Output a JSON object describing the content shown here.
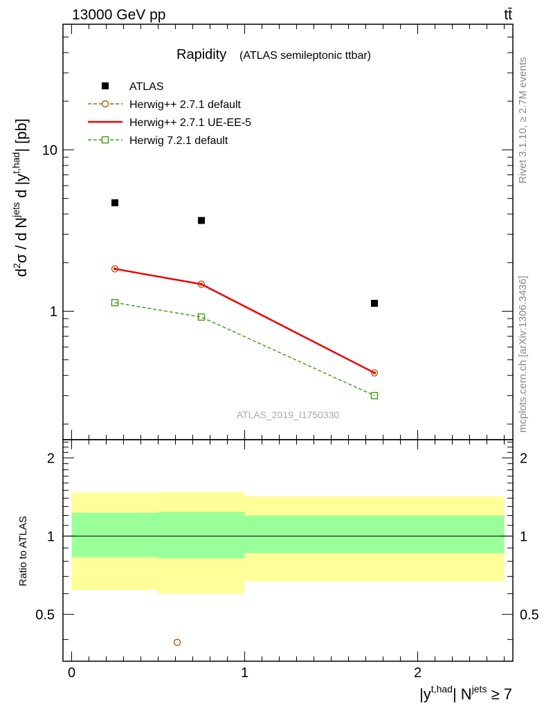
{
  "header": {
    "energy": "13000 GeV pp",
    "process": "tt̄"
  },
  "side_labels": {
    "rivet": "Rivet 3.1.10, ≥ 2.7M events",
    "mcplots": "mcplots.cern.ch [arXiv:1306.3436]"
  },
  "chart_data": [
    {
      "type": "scatter",
      "title": "Rapidity",
      "subtitle": "(ATLAS semileptonic ttbar)",
      "ylabel": "d²σ / d N^jets d |y^t,had| [pb]",
      "yscale": "log",
      "ylim": [
        0.16,
        60
      ],
      "xlim": [
        -0.05,
        2.55
      ],
      "grid": false,
      "legend_position": "top-left",
      "watermark": "ATLAS_2019_I1750330",
      "ytick_labels": [
        "1",
        "10"
      ],
      "series": [
        {
          "name": "ATLAS",
          "marker": "filled-square",
          "color": "#000000",
          "x": [
            0.25,
            0.75,
            1.75
          ],
          "y": [
            4.7,
            3.65,
            1.12
          ]
        },
        {
          "name": "Herwig++ 2.7.1 default",
          "marker": "open-circle",
          "line": "dashed",
          "color": "#b05a00",
          "x": [
            0.25,
            0.75,
            1.75
          ],
          "y": [
            1.83,
            1.47,
            0.415
          ]
        },
        {
          "name": "Herwig++ 2.7.1 UE-EE-5",
          "marker": "none",
          "line": "solid",
          "color": "#ee0000",
          "x": [
            0.25,
            0.75,
            1.75
          ],
          "y": [
            1.83,
            1.47,
            0.415
          ]
        },
        {
          "name": "Herwig 7.2.1 default",
          "marker": "open-square",
          "line": "dashed",
          "color": "#3a9a10",
          "x": [
            0.25,
            0.75,
            1.75
          ],
          "y": [
            1.13,
            0.92,
            0.3
          ]
        }
      ]
    },
    {
      "type": "scatter",
      "ylabel": "Ratio to ATLAS",
      "xlabel": "|y^t,had| N^jets ≥ 7",
      "ylim": [
        0.33,
        2.35
      ],
      "xlim": [
        -0.05,
        2.55
      ],
      "ytick_labels": [
        "0.5",
        "1",
        "2"
      ],
      "xtick_labels": [
        "0",
        "1",
        "2"
      ],
      "reference_line": 1,
      "bands": [
        {
          "x0": 0.0,
          "x1": 0.5,
          "inner": [
            0.83,
            1.23
          ],
          "outer": [
            0.62,
            1.47
          ]
        },
        {
          "x0": 0.5,
          "x1": 1.0,
          "inner": [
            0.82,
            1.24
          ],
          "outer": [
            0.6,
            1.48
          ]
        },
        {
          "x0": 1.0,
          "x1": 2.5,
          "inner": [
            0.86,
            1.2
          ],
          "outer": [
            0.67,
            1.42
          ]
        }
      ],
      "offscale_marker": {
        "x": 0.61,
        "y": 0.39,
        "marker": "open-circle",
        "color": "#b05a00"
      }
    }
  ]
}
